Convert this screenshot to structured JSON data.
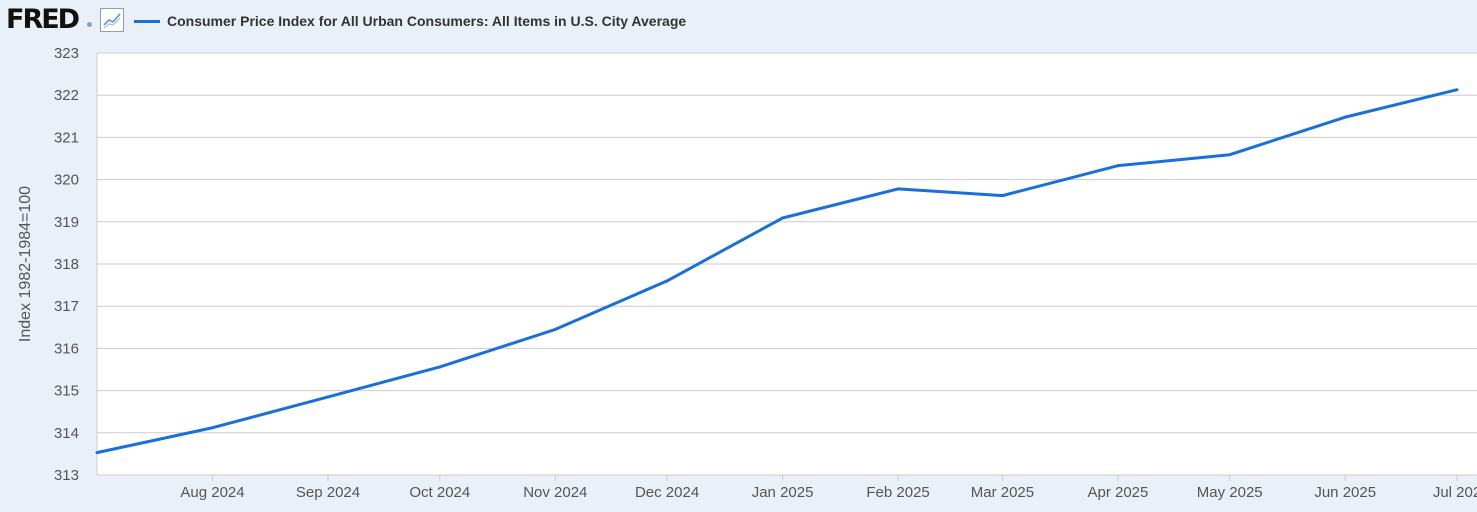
{
  "header": {
    "logo_text": "FRED",
    "series_title": "Consumer Price Index for All Urban Consumers: All Items in U.S. City Average"
  },
  "colors": {
    "background": "#e9f0f8",
    "plot_background": "#ffffff",
    "series": "#1a6fd8",
    "grid": "#cccccc"
  },
  "icons": {
    "chart_toggle": "line-chart-icon"
  },
  "chart_data": {
    "type": "line",
    "title": "Consumer Price Index for All Urban Consumers: All Items in U.S. City Average",
    "xlabel": "",
    "ylabel": "Index 1982-1984=100",
    "ylim": [
      313,
      323
    ],
    "yticks": [
      "313",
      "314",
      "315",
      "316",
      "317",
      "318",
      "319",
      "320",
      "321",
      "322",
      "323"
    ],
    "xlim": [
      "2024-07-01",
      "2025-07-01"
    ],
    "xtick_labels": [
      "Aug 2024",
      "Sep 2024",
      "Oct 2024",
      "Nov 2024",
      "Dec 2024",
      "Jan 2025",
      "Feb 2025",
      "Mar 2025",
      "Apr 2025",
      "May 2025",
      "Jun 2025",
      "Jul 202"
    ],
    "grid": true,
    "legend_position": "top-left",
    "series": [
      {
        "name": "Consumer Price Index for All Urban Consumers: All Items in U.S. City Average",
        "x": [
          "2024-07-01",
          "2024-08-01",
          "2024-09-01",
          "2024-10-01",
          "2024-11-01",
          "2024-12-01",
          "2025-01-01",
          "2025-02-01",
          "2025-03-01",
          "2025-04-01",
          "2025-05-01",
          "2025-06-01",
          "2025-07-01"
        ],
        "values": [
          313.53,
          314.12,
          314.85,
          315.56,
          316.45,
          317.6,
          319.09,
          319.78,
          319.62,
          320.33,
          320.59,
          321.48,
          322.13
        ]
      }
    ]
  }
}
